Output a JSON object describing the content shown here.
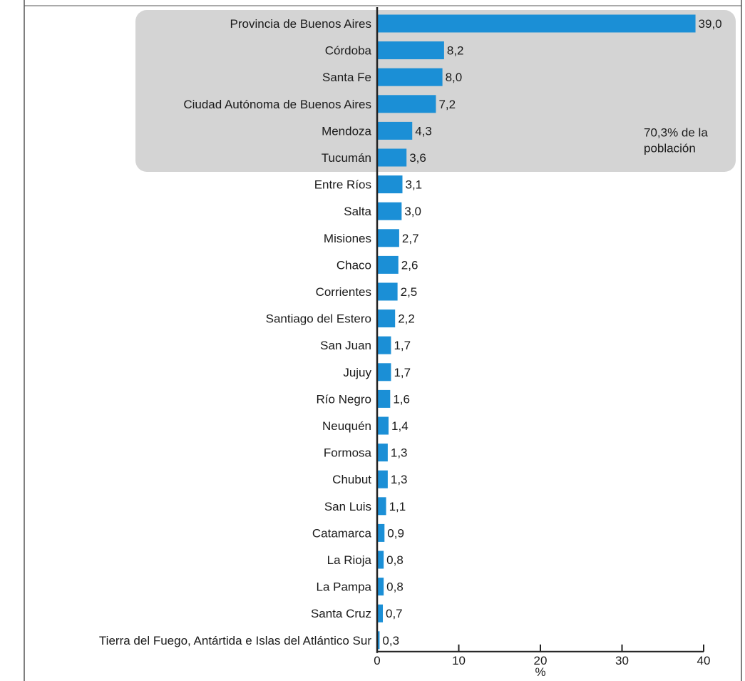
{
  "chart_data": {
    "type": "bar",
    "orientation": "horizontal",
    "categories": [
      "Provincia de Buenos Aires",
      "Córdoba",
      "Santa Fe",
      "Ciudad Autónoma de Buenos Aires",
      "Mendoza",
      "Tucumán",
      "Entre Ríos",
      "Salta",
      "Misiones",
      "Chaco",
      "Corrientes",
      "Santiago del Estero",
      "San Juan",
      "Jujuy",
      "Río Negro",
      "Neuquén",
      "Formosa",
      "Chubut",
      "San Luis",
      "Catamarca",
      "La Rioja",
      "La Pampa",
      "Santa Cruz",
      "Tierra del Fuego, Antártida e Islas del Atlántico Sur"
    ],
    "values": [
      39.0,
      8.2,
      8.0,
      7.2,
      4.3,
      3.6,
      3.1,
      3.0,
      2.7,
      2.6,
      2.5,
      2.2,
      1.7,
      1.7,
      1.6,
      1.4,
      1.3,
      1.3,
      1.1,
      0.9,
      0.8,
      0.8,
      0.7,
      0.3
    ],
    "value_labels": [
      "39,0",
      "8,2",
      "8,0",
      "7,2",
      "4,3",
      "3,6",
      "3,1",
      "3,0",
      "2,7",
      "2,6",
      "2,5",
      "2,2",
      "1,7",
      "1,7",
      "1,6",
      "1,4",
      "1,3",
      "1,3",
      "1,1",
      "0,9",
      "0,8",
      "0,8",
      "0,7",
      "0,3"
    ],
    "xlim": [
      0,
      40
    ],
    "xticks": [
      0,
      10,
      20,
      30,
      40
    ],
    "xlabel": "%",
    "grid": false,
    "highlight": {
      "range": [
        0,
        5
      ],
      "note_lines": [
        "70,3% de la",
        "población"
      ],
      "color": "#d4d4d4"
    },
    "bar_color": "#1b8fd6"
  }
}
